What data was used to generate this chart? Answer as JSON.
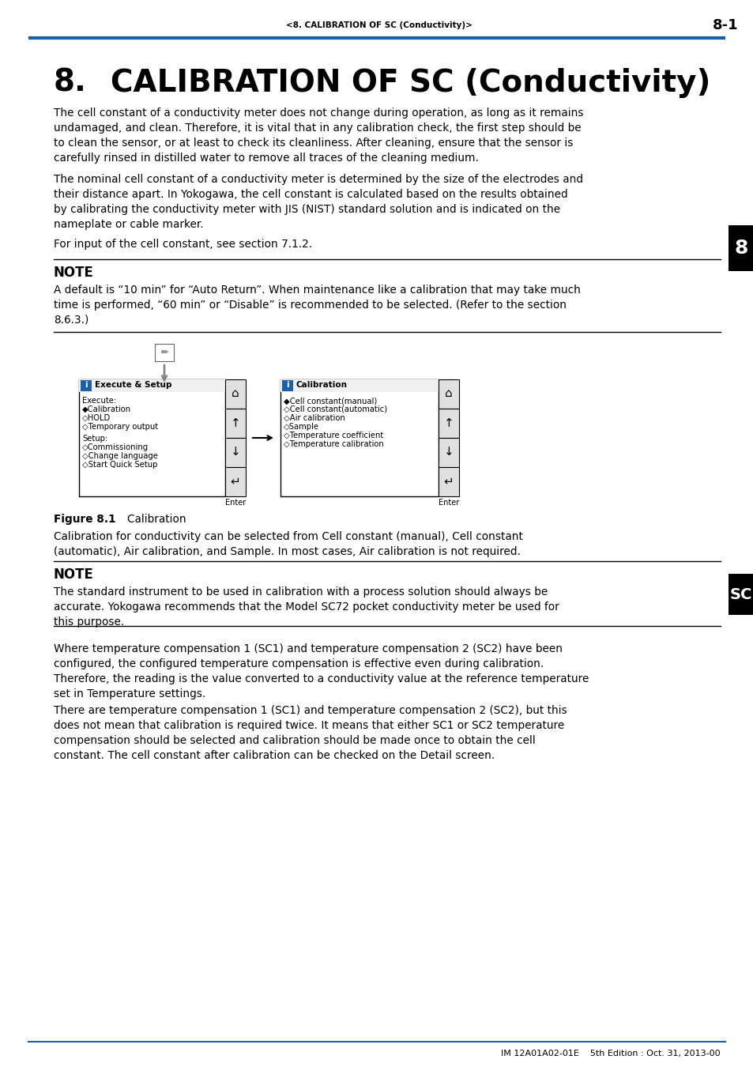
{
  "header_text": "<8. CALIBRATION OF SC (Conductivity)>",
  "page_number": "8-1",
  "chapter_number": "8.",
  "chapter_title": "CALIBRATION OF SC (Conductivity)",
  "header_line_color": "#1a5fa8",
  "body_text_color": "#000000",
  "note_header": "NOTE",
  "para1": "The cell constant of a conductivity meter does not change during operation, as long as it remains\nundamaged, and clean. Therefore, it is vital that in any calibration check, the first step should be\nto clean the sensor, or at least to check its cleanliness. After cleaning, ensure that the sensor is\ncarefully rinsed in distilled water to remove all traces of the cleaning medium.",
  "para2": "The nominal cell constant of a conductivity meter is determined by the size of the electrodes and\ntheir distance apart. In Yokogawa, the cell constant is calculated based on the results obtained\nby calibrating the conductivity meter with JIS (NIST) standard solution and is indicated on the\nnameplate or cable marker.",
  "para3": "For input of the cell constant, see section 7.1.2.",
  "note1_text": "A default is “10 min” for “Auto Return”. When maintenance like a calibration that may take much\ntime is performed, “60 min” or “Disable” is recommended to be selected. (Refer to the section\n8.6.3.)",
  "figure_caption_bold": "Figure 8.1",
  "figure_caption_normal": "        Calibration",
  "figure_desc": "Calibration for conductivity can be selected from Cell constant (manual), Cell constant\n(automatic), Air calibration, and Sample. In most cases, Air calibration is not required.",
  "note2_text": "The standard instrument to be used in calibration with a process solution should always be\naccurate. Yokogawa recommends that the Model SC72 pocket conductivity meter be used for\nthis purpose.",
  "para_final1": "Where temperature compensation 1 (SC1) and temperature compensation 2 (SC2) have been\nconfigured, the configured temperature compensation is effective even during calibration.\nTherefore, the reading is the value converted to a conductivity value at the reference temperature\nset in Temperature settings.",
  "para_final2": "There are temperature compensation 1 (SC1) and temperature compensation 2 (SC2), but this\ndoes not mean that calibration is required twice. It means that either SC1 or SC2 temperature\ncompensation should be selected and calibration should be made once to obtain the cell\nconstant. The cell constant after calibration can be checked on the Detail screen.",
  "footer_text": "IM 12A01A02-01E    5th Edition : Oct. 31, 2013-00",
  "sidebar_text": "8",
  "sidebar_sc": "SC",
  "sidebar_color": "#000000",
  "bg_color": "#ffffff",
  "blue_color": "#1a5fa8",
  "left_menu_title": "Execute & Setup",
  "left_menu_items": [
    "Execute:",
    "◆Calibration",
    "◇HOLD",
    "◇Temporary output",
    "",
    "Setup:",
    "◇Commissioning",
    "◇Change language",
    "◇Start Quick Setup"
  ],
  "right_menu_title": "Calibration",
  "right_menu_items": [
    "◆Cell constant(manual)",
    "◇Cell constant(automatic)",
    "◇Air calibration",
    "◇Sample",
    "◇Temperature coefficient",
    "◇Temperature calibration"
  ]
}
